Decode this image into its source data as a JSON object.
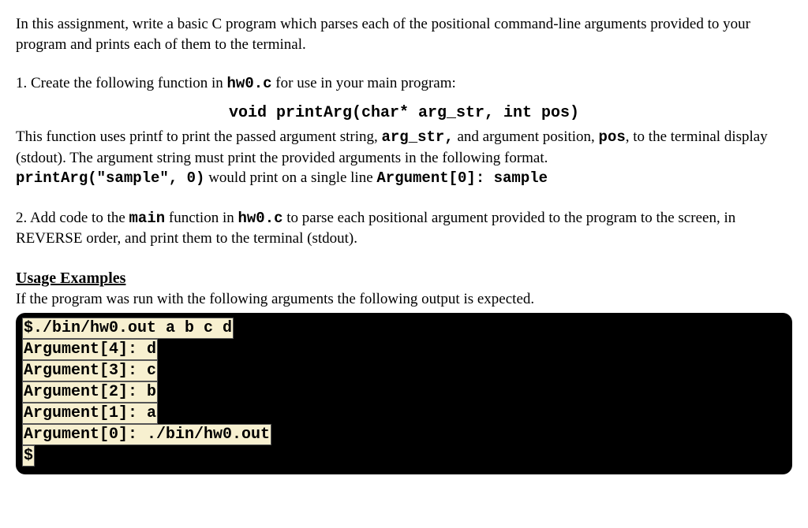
{
  "intro": "In this assignment, write a basic C program which parses each of the positional command-line arguments provided to your program and prints each of them to the terminal.",
  "step1": {
    "lead": "1. Create the following function in ",
    "file": "hw0.c",
    "lead2": " for use in your main program:",
    "signature": "void printArg(char* arg_str, int pos)",
    "desc_a": "This function uses printf to print the passed argument string, ",
    "arg1": "arg_str,",
    "desc_b": " and argument position, ",
    "arg2": "pos",
    "desc_c": ", to the terminal display (stdout). The argument string must print the provided arguments in the following format.",
    "call": "printArg(\"sample\", 0)",
    "desc_d": " would print on a single line ",
    "out": "Argument[0]: sample"
  },
  "step2": {
    "a": "2. Add code to the ",
    "main": "main",
    "b": " function in ",
    "file": "hw0.c",
    "c": " to parse each positional argument provided to the program to the screen, in REVERSE order, and print them to the terminal (stdout)."
  },
  "usage": {
    "heading": "Usage Examples",
    "note": "If the program was run with the following arguments the following output is expected."
  },
  "terminal": {
    "bg": "#000000",
    "hl_bg": "#f7f0d0",
    "lines": [
      "$./bin/hw0.out a b c d",
      "Argument[4]: d",
      "Argument[3]: c",
      "Argument[2]: b",
      "Argument[1]: a",
      "Argument[0]: ./bin/hw0.out",
      "$"
    ]
  }
}
